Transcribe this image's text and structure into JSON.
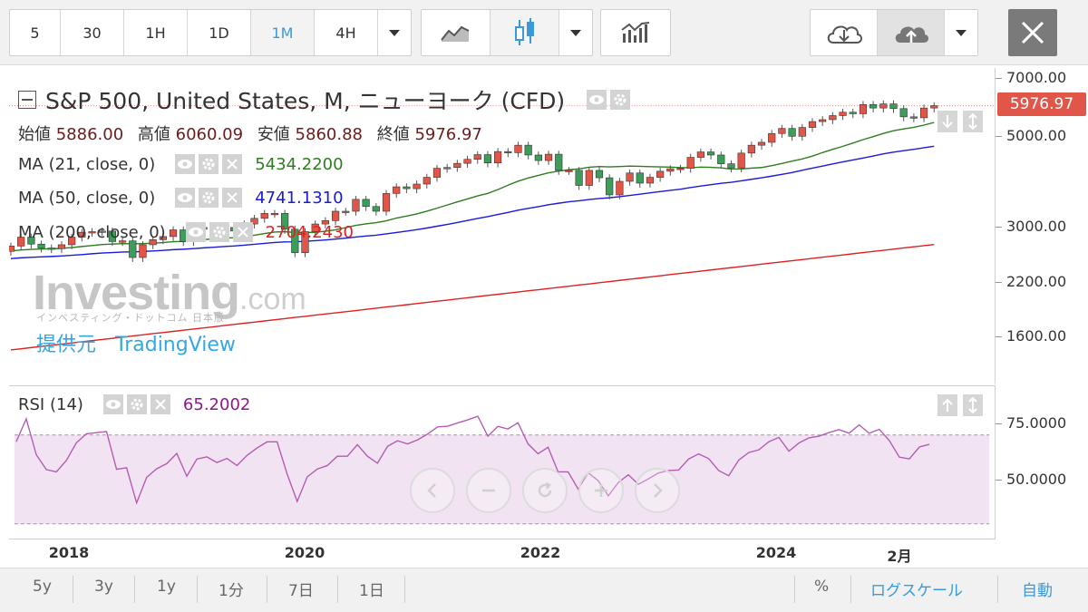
{
  "toolbar": {
    "intervals": [
      "5",
      "30",
      "1H",
      "1D",
      "1M",
      "4H"
    ],
    "active_interval": "1M"
  },
  "legend": {
    "title": "S&P 500, United States, M, ニューヨーク (CFD)",
    "ohlc": {
      "open_label": "始値",
      "open": "5886.00",
      "high_label": "高値",
      "high": "6060.09",
      "low_label": "安値",
      "low": "5860.88",
      "close_label": "終値",
      "close": "5976.97"
    },
    "ma21": {
      "label": "MA (21, close, 0)",
      "value": "5434.2200",
      "color": "#2e7d1f"
    },
    "ma50": {
      "label": "MA (50, close, 0)",
      "value": "4741.1310",
      "color": "#1a1adb"
    },
    "ma200": {
      "label": "MA (200, close, 0)",
      "value": "2704.2430",
      "color": "#e02020"
    },
    "rsi": {
      "label": "RSI (14)",
      "value": "65.2002",
      "color": "#8b1a8b"
    }
  },
  "watermark": {
    "logo": "Investing",
    "logo_suffix": ".com",
    "sub": "インベスティング・ドットコム 日本版",
    "provider_label": "提供元",
    "provider_name": "TradingView"
  },
  "price_axis": {
    "labels": [
      "7000.00",
      "5000.00",
      "3000.00",
      "2200.00",
      "1600.00"
    ],
    "last_price": "5976.97",
    "last_price_color": "#e0574a"
  },
  "rsi_axis": {
    "labels": [
      "75.0000",
      "50.0000"
    ]
  },
  "time_axis": {
    "labels": [
      "2018",
      "2020",
      "2022",
      "2024",
      "2月"
    ]
  },
  "bottom_bar": {
    "ranges": [
      "5y",
      "3y",
      "1y",
      "1分",
      "7日",
      "1日"
    ],
    "percent": "%",
    "log_scale": "ログスケール",
    "auto": "自動"
  },
  "colors": {
    "up": "#e0574a",
    "down": "#3c9e5a",
    "accent": "#3a9ad9"
  },
  "chart_data": {
    "type": "candlestick",
    "log_scale": true,
    "closes": [
      2680,
      2820,
      2710,
      2650,
      2640,
      2700,
      2820,
      2900,
      2910,
      2920,
      2750,
      2760,
      2510,
      2700,
      2780,
      2830,
      2940,
      2750,
      2950,
      2980,
      2930,
      2980,
      2920,
      3040,
      3140,
      3230,
      3230,
      2950,
      2580,
      2910,
      3040,
      3100,
      3270,
      3270,
      3500,
      3360,
      3270,
      3620,
      3760,
      3720,
      3820,
      3970,
      4180,
      4200,
      4300,
      4400,
      4520,
      4310,
      4600,
      4570,
      4770,
      4510,
      4370,
      4530,
      4130,
      4130,
      3790,
      4130,
      3960,
      3590,
      3880,
      4070,
      3840,
      3970,
      4110,
      4170,
      4180,
      4450,
      4590,
      4510,
      4290,
      4190,
      4560,
      4770,
      4850,
      5100,
      5250,
      5020,
      5280,
      5460,
      5520,
      5650,
      5760,
      5710,
      6020,
      5900,
      6040,
      5880,
      5610,
      5580,
      5900,
      5980
    ]
  }
}
